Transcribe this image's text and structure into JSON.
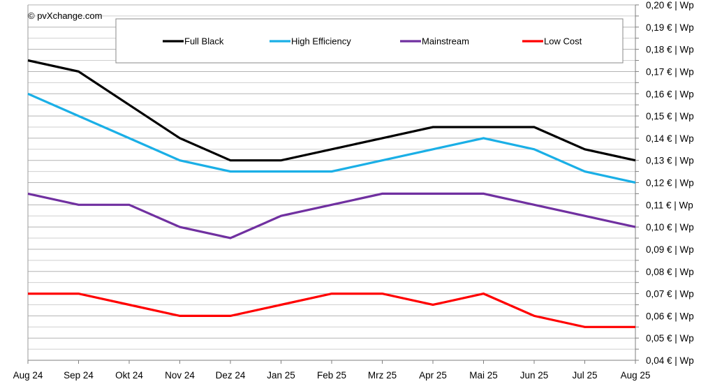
{
  "copyright": "© pvXchange.com",
  "chart_data": {
    "type": "line",
    "title": "",
    "xlabel": "",
    "ylabel": "",
    "categories": [
      "Aug 24",
      "Sep 24",
      "Okt 24",
      "Nov 24",
      "Dez 24",
      "Jan 25",
      "Feb 25",
      "Mrz 25",
      "Apr 25",
      "Mai 25",
      "Jun 25",
      "Jul 25",
      "Aug 25"
    ],
    "ylim": [
      0.04,
      0.2
    ],
    "y_major_step": 0.01,
    "y_minor_step": 0.005,
    "y_tick_labels": [
      "0,04 € | Wp",
      "0,05 € | Wp",
      "0,06 € | Wp",
      "0,07 € | Wp",
      "0,08 € | Wp",
      "0,09 € | Wp",
      "0,10 € | Wp",
      "0,11 € | Wp",
      "0,12 € | Wp",
      "0,13 € | Wp",
      "0,14 € | Wp",
      "0,15 € | Wp",
      "0,16 € | Wp",
      "0,17 € | Wp",
      "0,18 € | Wp",
      "0,19 € | Wp",
      "0,20 € | Wp"
    ],
    "grid": true,
    "legend_position": "top",
    "series": [
      {
        "name": "Full Black",
        "color": "#000000",
        "values": [
          0.175,
          0.17,
          0.155,
          0.14,
          0.13,
          0.13,
          0.135,
          0.14,
          0.145,
          0.145,
          0.145,
          0.135,
          0.13
        ]
      },
      {
        "name": "High Efficiency",
        "color": "#1AAFE6",
        "values": [
          0.16,
          0.15,
          0.14,
          0.13,
          0.125,
          0.125,
          0.125,
          0.13,
          0.135,
          0.14,
          0.135,
          0.125,
          0.12
        ]
      },
      {
        "name": "Mainstream",
        "color": "#7030A0",
        "values": [
          0.115,
          0.11,
          0.11,
          0.1,
          0.095,
          0.105,
          0.11,
          0.115,
          0.115,
          0.115,
          0.11,
          0.105,
          0.1
        ]
      },
      {
        "name": "Low Cost",
        "color": "#FF0000",
        "values": [
          0.07,
          0.07,
          0.065,
          0.06,
          0.06,
          0.065,
          0.07,
          0.07,
          0.065,
          0.07,
          0.06,
          0.055,
          0.055
        ]
      }
    ]
  }
}
